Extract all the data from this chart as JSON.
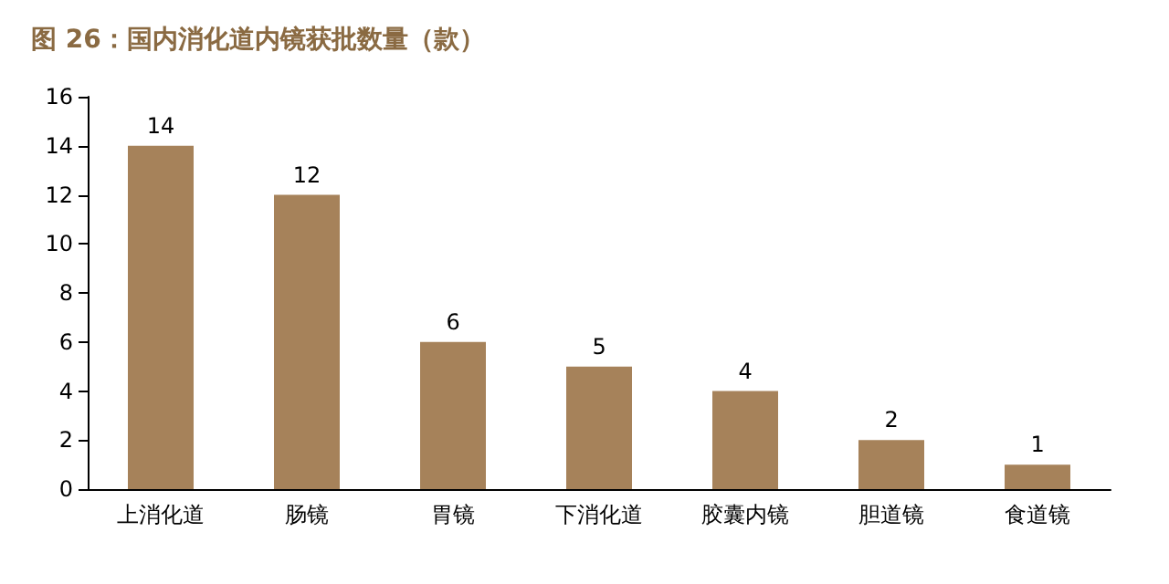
{
  "chart_data": {
    "type": "bar",
    "title": "图 26：国内消化道内镜获批数量（款）",
    "categories": [
      "上消化道",
      "肠镜",
      "胃镜",
      "下消化道",
      "胶囊内镜",
      "胆道镜",
      "食道镜"
    ],
    "values": [
      14,
      12,
      6,
      5,
      4,
      2,
      1
    ],
    "color": "#a6825a",
    "ylim": [
      0,
      16
    ],
    "yticks": [
      0,
      2,
      4,
      6,
      8,
      10,
      12,
      14,
      16
    ],
    "grid": false,
    "data_labels": true
  }
}
